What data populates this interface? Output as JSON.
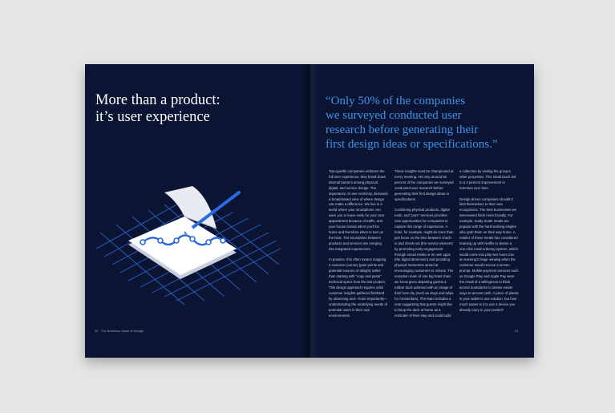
{
  "left_page": {
    "title": [
      "More than a product:",
      "it’s user experience"
    ],
    "page_number": "20",
    "publication": "The Business Value of Design"
  },
  "right_page": {
    "quote": [
      "“Only 50% of the companies",
      "we surveyed conducted user",
      "research before generating their",
      "first design ideas or specifications.”"
    ],
    "columns": [
      [
        "Top-quartile companies embrace the full user experience; they break down internal barriers among physical, digital, and service design. The importance of user-centricity, demands a broad-based view of where design can make a difference. We live in a world where your smartphone can warn you to leave early for your next appointment because of traffic, and your house knows when you’ll be home and therefore when to turn on the heat. The boundaries between products and services are merging into integrated experiences.",
        "In practice, this often means mapping a customer journey (pain points and potential sources of delight) rather than starting with “copy and paste” technical specs from the last product. This design approach requires solid customer insights gathered firsthand by observing and—more importantly—understanding the underlying needs of potential users in their own environments."
      ],
      [
        "These insights must be championed at every meeting. Yet only around 50 percent of the companies we surveyed conducted user research before generating their first design ideas or specifications.",
        "Combining physical products, digital tools, and “pure” services provides new opportunities for companies to capture this range of experience. A hotel, for example, might do more than just focus on the time between check-in and check-out (the service element) by promoting early engagement through social media or its own apps (the digital dimension) and providing physical mementos aimed at encouraging customers to rebook. The reception team of one big hotel chain we know gives departing guests a rubber duck adorned with an image of their host city (such as clogs and tulips for Amsterdam). The team includes a note suggesting that guests might like to keep the duck at home as a reminder of their stay and could build"
      ],
      [
        "a collection by visiting the group’s other properties. This small touch led to a 3 percent improvement in retention over time.",
        "Design-driven companies shouldn’t limit themselves to their own ecosystems. The best businesses we interviewed think more broadly. For example, ready-made meals are popular with the hard-working singles who grab them on their way home. A retailer of these meals has considered teaming up with Netflix to devise a one-click meal-ordering system, which would come into play two hours into an evening’s binge viewing when the customer would receive a screen prompt. Mobile-payment services such as Google Play and Apple Pay were the result of a willingness to think across boundaries to devise easier ways to access cash. A piece of plastic in your wallet is one solution, but how much easier is it to use a device you already carry in your pocket?"
      ]
    ],
    "page_number": "21"
  }
}
